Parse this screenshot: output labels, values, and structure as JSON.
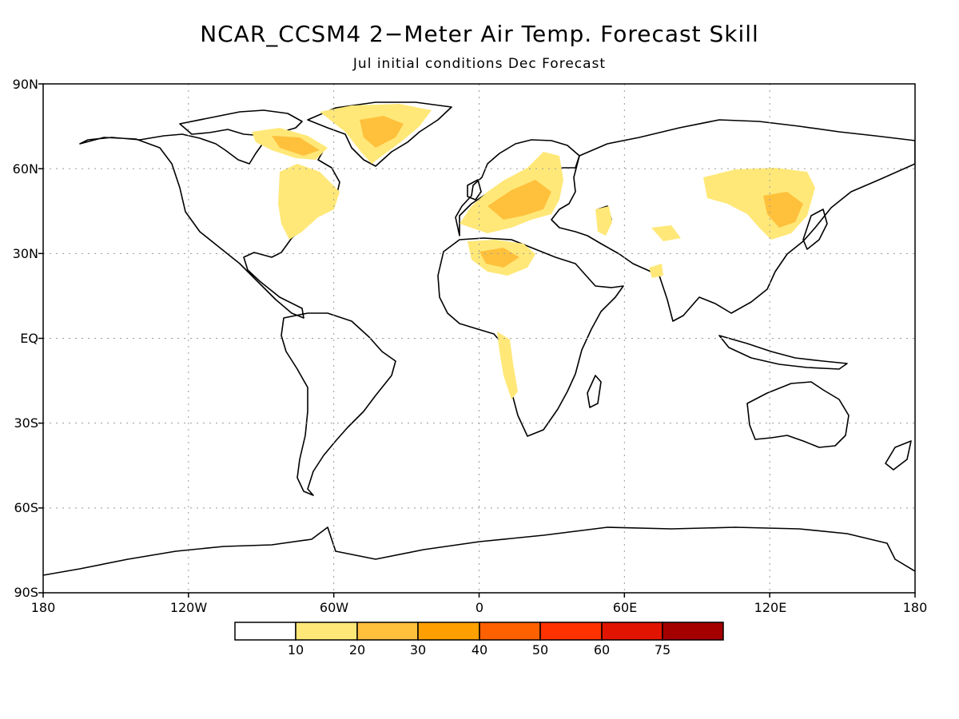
{
  "title": "NCAR_CCSM4 2−Meter Air Temp. Forecast Skill",
  "subtitle": "Jul initial conditions  Dec Forecast",
  "map": {
    "projection": "equirectangular",
    "lon_range": [
      -180,
      180
    ],
    "lat_range": [
      -90,
      90
    ],
    "gridlines": "dotted",
    "lat_labels": [
      "90N",
      "60N",
      "30N",
      "EQ",
      "30S",
      "60S",
      "90S"
    ],
    "lon_labels": [
      "180",
      "120W",
      "60W",
      "0",
      "60E",
      "120E",
      "180"
    ]
  },
  "colorbar": {
    "colors": [
      "#ffffff",
      "#ffe878",
      "#ffc03c",
      "#ffa000",
      "#ff6000",
      "#ff3200",
      "#e11400",
      "#a50000"
    ],
    "labels": [
      "10",
      "20",
      "30",
      "40",
      "50",
      "60",
      "75"
    ]
  }
}
